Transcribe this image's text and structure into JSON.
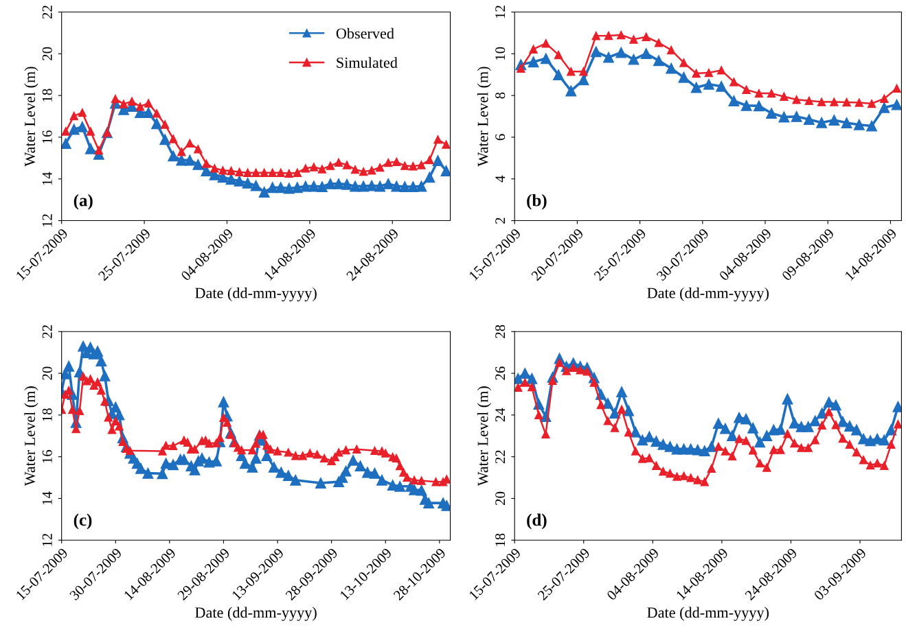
{
  "chart_data": [
    {
      "type": "line",
      "xlabel": "Date (dd-mm-yyyy)",
      "ylabel": "Water Level (m)",
      "annotations": [
        "(a)"
      ],
      "marker": "triangle",
      "line_style": "solid",
      "legend": "top right",
      "xlim": [
        "2009-07-15",
        "2009-08-31"
      ],
      "ylim": [
        12,
        22
      ],
      "yticks": [
        12,
        14,
        16,
        18,
        20,
        22
      ],
      "xticks": [
        {
          "value": "2009-07-15",
          "label": "15-07-2009"
        },
        {
          "value": "2009-07-25",
          "label": "25-07-2009"
        },
        {
          "value": "2009-08-04",
          "label": "04-08-2009"
        },
        {
          "value": "2009-08-14",
          "label": "14-08-2009"
        },
        {
          "value": "2009-08-24",
          "label": "24-08-2009"
        }
      ],
      "x": [
        "2009-07-15T12:00",
        "2009-07-16T12:00",
        "2009-07-17T12:00",
        "2009-07-18T12:00",
        "2009-07-19T12:00",
        "2009-07-20T12:00",
        "2009-07-21T12:00",
        "2009-07-22T12:00",
        "2009-07-23T12:00",
        "2009-07-24T12:00",
        "2009-07-25T12:00",
        "2009-07-26T12:00",
        "2009-07-27T12:00",
        "2009-07-28T12:00",
        "2009-07-29T12:00",
        "2009-07-30T12:00",
        "2009-07-31T12:00",
        "2009-08-01T12:00",
        "2009-08-02T12:00",
        "2009-08-03T12:00",
        "2009-08-04T12:00",
        "2009-08-05T12:00",
        "2009-08-06T12:00",
        "2009-08-07T12:00",
        "2009-08-08T12:00",
        "2009-08-09T12:00",
        "2009-08-10T12:00",
        "2009-08-11T12:00",
        "2009-08-12T12:00",
        "2009-08-13T12:00",
        "2009-08-14T12:00",
        "2009-08-15T12:00",
        "2009-08-16T12:00",
        "2009-08-17T12:00",
        "2009-08-18T12:00",
        "2009-08-19T12:00",
        "2009-08-20T12:00",
        "2009-08-21T12:00",
        "2009-08-22T12:00",
        "2009-08-23T12:00",
        "2009-08-24T12:00",
        "2009-08-25T12:00",
        "2009-08-26T12:00",
        "2009-08-27T12:00",
        "2009-08-28T12:00",
        "2009-08-29T12:00",
        "2009-08-30T12:00"
      ],
      "series": [
        {
          "name": "Observed",
          "color": "#1f6fc0",
          "values": [
            15.7,
            16.38,
            16.5,
            15.45,
            15.18,
            16.22,
            17.63,
            17.32,
            17.48,
            17.18,
            17.18,
            16.65,
            15.89,
            15.1,
            14.9,
            14.9,
            14.69,
            14.39,
            14.2,
            14.08,
            13.98,
            13.9,
            13.8,
            13.68,
            13.37,
            13.59,
            13.59,
            13.55,
            13.59,
            13.65,
            13.65,
            13.63,
            13.77,
            13.77,
            13.74,
            13.65,
            13.65,
            13.68,
            13.65,
            13.77,
            13.65,
            13.63,
            13.63,
            13.65,
            14.08,
            14.88,
            14.39
          ]
        },
        {
          "name": "Simulated",
          "color": "#e8202a",
          "values": [
            16.28,
            17.02,
            17.18,
            16.28,
            15.37,
            16.22,
            17.84,
            17.59,
            17.72,
            17.47,
            17.63,
            17.14,
            16.61,
            15.92,
            15.3,
            15.71,
            15.43,
            14.73,
            14.51,
            14.41,
            14.39,
            14.33,
            14.3,
            14.3,
            14.3,
            14.3,
            14.3,
            14.26,
            14.3,
            14.51,
            14.57,
            14.47,
            14.63,
            14.79,
            14.67,
            14.45,
            14.35,
            14.41,
            14.55,
            14.78,
            14.82,
            14.63,
            14.61,
            14.67,
            14.91,
            15.89,
            15.65
          ]
        }
      ]
    },
    {
      "type": "line",
      "xlabel": "Date (dd-mm-yyyy)",
      "ylabel": "Water Level (m)",
      "annotations": [
        "(b)"
      ],
      "marker": "triangle",
      "line_style": "solid",
      "xlim": [
        "2009-07-15",
        "2009-08-14T21:00"
      ],
      "ylim": [
        2,
        12
      ],
      "yticks": [
        2,
        4,
        6,
        8,
        10,
        12
      ],
      "xticks": [
        {
          "value": "2009-07-15",
          "label": "15-07-2009"
        },
        {
          "value": "2009-07-20",
          "label": "20-07-2009"
        },
        {
          "value": "2009-07-25",
          "label": "25-07-2009"
        },
        {
          "value": "2009-07-30",
          "label": "30-07-2009"
        },
        {
          "value": "2009-08-04",
          "label": "04-08-2009"
        },
        {
          "value": "2009-08-09",
          "label": "09-08-2009"
        },
        {
          "value": "2009-08-14",
          "label": "14-08-2009"
        }
      ],
      "x": [
        "2009-07-15T12:00",
        "2009-07-16T12:00",
        "2009-07-17T12:00",
        "2009-07-18T12:00",
        "2009-07-19T12:00",
        "2009-07-20T12:00",
        "2009-07-21T12:00",
        "2009-07-22T12:00",
        "2009-07-23T12:00",
        "2009-07-24T12:00",
        "2009-07-25T12:00",
        "2009-07-26T12:00",
        "2009-07-27T12:00",
        "2009-07-28T12:00",
        "2009-07-29T12:00",
        "2009-07-30T12:00",
        "2009-07-31T12:00",
        "2009-08-01T12:00",
        "2009-08-02T12:00",
        "2009-08-03T12:00",
        "2009-08-04T12:00",
        "2009-08-05T12:00",
        "2009-08-06T12:00",
        "2009-08-07T12:00",
        "2009-08-08T12:00",
        "2009-08-09T12:00",
        "2009-08-10T12:00",
        "2009-08-11T12:00",
        "2009-08-12T12:00",
        "2009-08-13T12:00",
        "2009-08-14T12:00"
      ],
      "series": [
        {
          "color": "#1f6fc0",
          "values": [
            9.48,
            9.61,
            9.77,
            8.99,
            8.22,
            8.75,
            10.1,
            9.83,
            10.06,
            9.73,
            10.01,
            9.67,
            9.3,
            8.87,
            8.38,
            8.54,
            8.44,
            7.74,
            7.52,
            7.5,
            7.15,
            6.97,
            6.99,
            6.85,
            6.7,
            6.82,
            6.69,
            6.6,
            6.54,
            7.42,
            7.56
          ]
        },
        {
          "color": "#e8202a",
          "values": [
            9.3,
            10.22,
            10.5,
            9.95,
            9.15,
            9.15,
            10.86,
            10.87,
            10.9,
            10.69,
            10.81,
            10.53,
            10.18,
            9.57,
            9.06,
            9.09,
            9.21,
            8.65,
            8.28,
            8.1,
            8.1,
            7.95,
            7.8,
            7.75,
            7.69,
            7.69,
            7.68,
            7.66,
            7.61,
            7.85,
            8.34
          ]
        }
      ]
    },
    {
      "type": "line",
      "xlabel": "Date (dd-mm-yyyy)",
      "ylabel": "Water Level (m)",
      "annotations": [
        "(c)"
      ],
      "marker": "triangle",
      "line_style": "solid",
      "xlim": [
        "2009-07-15",
        "2009-10-31"
      ],
      "ylim": [
        12,
        22
      ],
      "yticks": [
        12,
        14,
        16,
        18,
        20,
        22
      ],
      "xticks": [
        {
          "value": "2009-07-15",
          "label": "15-07-2009"
        },
        {
          "value": "2009-07-30",
          "label": "30-07-2009"
        },
        {
          "value": "2009-08-14",
          "label": "14-08-2009"
        },
        {
          "value": "2009-08-29",
          "label": "29-08-2009"
        },
        {
          "value": "2009-09-13",
          "label": "13-09-2009"
        },
        {
          "value": "2009-09-28",
          "label": "28-09-2009"
        },
        {
          "value": "2009-10-13",
          "label": "13-10-2009"
        },
        {
          "value": "2009-10-28",
          "label": "28-10-2009"
        }
      ],
      "series": [
        {
          "color": "#1f6fc0",
          "x": [
            "2009-07-15",
            "2009-07-16",
            "2009-07-17",
            "2009-07-18",
            "2009-07-19",
            "2009-07-20",
            "2009-07-21",
            "2009-07-22",
            "2009-07-23",
            "2009-07-24",
            "2009-07-25",
            "2009-07-26",
            "2009-07-27",
            "2009-07-28",
            "2009-07-29",
            "2009-07-30",
            "2009-07-31",
            "2009-08-01",
            "2009-08-02",
            "2009-08-03",
            "2009-08-04",
            "2009-08-05",
            "2009-08-06",
            "2009-08-08",
            "2009-08-12",
            "2009-08-13",
            "2009-08-15",
            "2009-08-17",
            "2009-08-18",
            "2009-08-20",
            "2009-08-21",
            "2009-08-22",
            "2009-08-23",
            "2009-08-25",
            "2009-08-27",
            "2009-08-28",
            "2009-08-29",
            "2009-08-30",
            "2009-08-31",
            "2009-09-01",
            "2009-09-03",
            "2009-09-04",
            "2009-09-06",
            "2009-09-07",
            "2009-09-08",
            "2009-09-09",
            "2009-09-10",
            "2009-09-12",
            "2009-09-14",
            "2009-09-16",
            "2009-09-18",
            "2009-09-25",
            "2009-09-30",
            "2009-10-01",
            "2009-10-02",
            "2009-10-04",
            "2009-10-06",
            "2009-10-08",
            "2009-10-10",
            "2009-10-12",
            "2009-10-15",
            "2009-10-17",
            "2009-10-20",
            "2009-10-21",
            "2009-10-23",
            "2009-10-24",
            "2009-10-25",
            "2009-10-29",
            "2009-10-30"
          ],
          "values": [
            19.12,
            19.98,
            20.34,
            18.99,
            17.64,
            20.07,
            21.3,
            20.99,
            21.24,
            20.93,
            21.06,
            20.59,
            19.88,
            18.69,
            18.07,
            18.38,
            18.01,
            16.91,
            16.48,
            16.17,
            15.93,
            15.68,
            15.44,
            15.21,
            15.19,
            15.68,
            15.62,
            15.87,
            15.87,
            15.56,
            15.37,
            15.8,
            15.93,
            15.74,
            15.8,
            16.72,
            18.63,
            17.95,
            17.15,
            16.72,
            16.05,
            15.68,
            15.5,
            15.93,
            17.03,
            16.79,
            16.05,
            15.5,
            15.25,
            15.1,
            14.88,
            14.74,
            14.8,
            15.01,
            15.31,
            15.83,
            15.56,
            15.25,
            15.21,
            14.88,
            14.64,
            14.58,
            14.58,
            14.42,
            14.39,
            13.96,
            13.78,
            13.78,
            13.66
          ]
        },
        {
          "color": "#e8202a",
          "x": [
            "2009-07-15",
            "2009-07-16",
            "2009-07-17",
            "2009-07-18",
            "2009-07-19",
            "2009-07-20",
            "2009-07-21",
            "2009-07-22",
            "2009-07-23",
            "2009-07-24",
            "2009-07-25",
            "2009-07-26",
            "2009-07-27",
            "2009-07-28",
            "2009-07-29",
            "2009-07-30",
            "2009-07-31",
            "2009-08-01",
            "2009-08-02",
            "2009-08-03",
            "2009-08-12",
            "2009-08-13",
            "2009-08-15",
            "2009-08-18",
            "2009-08-19",
            "2009-08-20",
            "2009-08-21",
            "2009-08-23",
            "2009-08-24",
            "2009-08-25",
            "2009-08-27",
            "2009-08-28",
            "2009-08-29",
            "2009-08-30",
            "2009-08-31",
            "2009-09-01",
            "2009-09-02",
            "2009-09-03",
            "2009-09-06",
            "2009-09-07",
            "2009-09-08",
            "2009-09-09",
            "2009-09-10",
            "2009-09-11",
            "2009-09-13",
            "2009-09-16",
            "2009-09-18",
            "2009-09-20",
            "2009-09-22",
            "2009-09-24",
            "2009-09-26",
            "2009-09-28",
            "2009-09-29",
            "2009-09-30",
            "2009-10-02",
            "2009-10-05",
            "2009-10-10",
            "2009-10-12",
            "2009-10-13",
            "2009-10-15",
            "2009-10-16",
            "2009-10-17",
            "2009-10-18",
            "2009-10-19",
            "2009-10-21",
            "2009-10-23",
            "2009-10-27",
            "2009-10-29",
            "2009-10-30"
          ],
          "values": [
            18.26,
            18.99,
            19.18,
            18.26,
            17.34,
            18.2,
            19.85,
            19.63,
            19.73,
            19.42,
            19.58,
            19.18,
            18.65,
            17.89,
            17.3,
            17.71,
            17.46,
            16.72,
            16.39,
            16.29,
            16.27,
            16.54,
            16.52,
            16.79,
            16.69,
            16.36,
            16.36,
            16.76,
            16.79,
            16.64,
            16.66,
            16.91,
            17.87,
            17.64,
            17.06,
            16.66,
            16.44,
            16.32,
            16.32,
            16.64,
            17.06,
            17.06,
            16.54,
            16.36,
            16.27,
            16.21,
            16.05,
            16.05,
            16.17,
            16.11,
            15.93,
            15.8,
            15.99,
            16.21,
            16.32,
            16.36,
            16.29,
            16.27,
            16.17,
            15.99,
            15.93,
            15.56,
            15.25,
            15.01,
            14.88,
            14.85,
            14.8,
            14.8,
            14.92
          ]
        }
      ]
    },
    {
      "type": "line",
      "xlabel": "Date (dd-mm-yyyy)",
      "ylabel": "Water Level (m)",
      "annotations": [
        "(d)"
      ],
      "marker": "triangle",
      "line_style": "solid",
      "xlim": [
        "2009-07-15",
        "2009-09-09"
      ],
      "ylim": [
        18,
        28
      ],
      "yticks": [
        18,
        20,
        22,
        24,
        26,
        28
      ],
      "xticks": [
        {
          "value": "2009-07-15",
          "label": "15-07-2009"
        },
        {
          "value": "2009-07-25",
          "label": "25-07-2009"
        },
        {
          "value": "2009-08-04",
          "label": "04-08-2009"
        },
        {
          "value": "2009-08-14",
          "label": "14-08-2009"
        },
        {
          "value": "2009-08-24",
          "label": "24-08-2009"
        },
        {
          "value": "2009-09-03",
          "label": "03-09-2009"
        }
      ],
      "x": [
        "2009-07-15T12:00",
        "2009-07-16T12:00",
        "2009-07-17T12:00",
        "2009-07-18T12:00",
        "2009-07-19T12:00",
        "2009-07-20T12:00",
        "2009-07-21T12:00",
        "2009-07-22T12:00",
        "2009-07-23T12:00",
        "2009-07-24T12:00",
        "2009-07-25T12:00",
        "2009-07-26T12:00",
        "2009-07-27T12:00",
        "2009-07-28T12:00",
        "2009-07-29T12:00",
        "2009-07-30T12:00",
        "2009-07-31T12:00",
        "2009-08-01T12:00",
        "2009-08-02T12:00",
        "2009-08-03T12:00",
        "2009-08-04T12:00",
        "2009-08-05T12:00",
        "2009-08-06T12:00",
        "2009-08-07T12:00",
        "2009-08-08T12:00",
        "2009-08-09T12:00",
        "2009-08-10T12:00",
        "2009-08-11T12:00",
        "2009-08-12T12:00",
        "2009-08-13T12:00",
        "2009-08-14T12:00",
        "2009-08-15T12:00",
        "2009-08-16T12:00",
        "2009-08-17T12:00",
        "2009-08-18T12:00",
        "2009-08-19T12:00",
        "2009-08-20T12:00",
        "2009-08-21T12:00",
        "2009-08-22T12:00",
        "2009-08-23T12:00",
        "2009-08-24T12:00",
        "2009-08-25T12:00",
        "2009-08-26T12:00",
        "2009-08-27T12:00",
        "2009-08-28T12:00",
        "2009-08-29T12:00",
        "2009-08-30T12:00",
        "2009-08-31T12:00",
        "2009-09-01T12:00",
        "2009-09-02T12:00",
        "2009-09-03T12:00",
        "2009-09-04T12:00",
        "2009-09-05T12:00",
        "2009-09-06T12:00",
        "2009-09-07T12:00",
        "2009-09-08T12:00"
      ],
      "series": [
        {
          "color": "#1f6fc0",
          "values": [
            25.75,
            26.0,
            25.75,
            24.52,
            23.93,
            25.81,
            26.71,
            26.33,
            26.49,
            26.33,
            26.27,
            25.79,
            24.99,
            24.56,
            24.09,
            25.11,
            24.21,
            23.19,
            22.8,
            22.96,
            22.74,
            22.59,
            22.49,
            22.37,
            22.37,
            22.37,
            22.33,
            22.28,
            22.49,
            23.6,
            23.35,
            23.01,
            23.88,
            23.81,
            23.38,
            22.7,
            23.01,
            23.29,
            23.31,
            24.77,
            23.62,
            23.44,
            23.44,
            23.72,
            24.09,
            24.62,
            24.48,
            23.68,
            23.47,
            23.29,
            22.86,
            22.77,
            22.86,
            22.8,
            23.29,
            24.4
          ]
        },
        {
          "color": "#e8202a",
          "values": [
            25.32,
            25.56,
            25.34,
            24.0,
            23.08,
            25.65,
            26.51,
            26.12,
            26.27,
            26.16,
            26.09,
            25.56,
            24.49,
            23.72,
            23.39,
            24.27,
            23.17,
            22.27,
            21.91,
            21.94,
            21.57,
            21.3,
            21.2,
            21.05,
            21.08,
            20.99,
            20.89,
            20.8,
            21.44,
            22.49,
            22.27,
            22.03,
            22.86,
            22.77,
            22.31,
            21.69,
            21.48,
            22.33,
            22.33,
            23.1,
            22.65,
            22.43,
            22.43,
            22.8,
            23.51,
            24.15,
            23.53,
            22.88,
            22.59,
            22.22,
            21.85,
            21.59,
            21.69,
            21.57,
            22.59,
            23.56
          ]
        }
      ]
    }
  ]
}
